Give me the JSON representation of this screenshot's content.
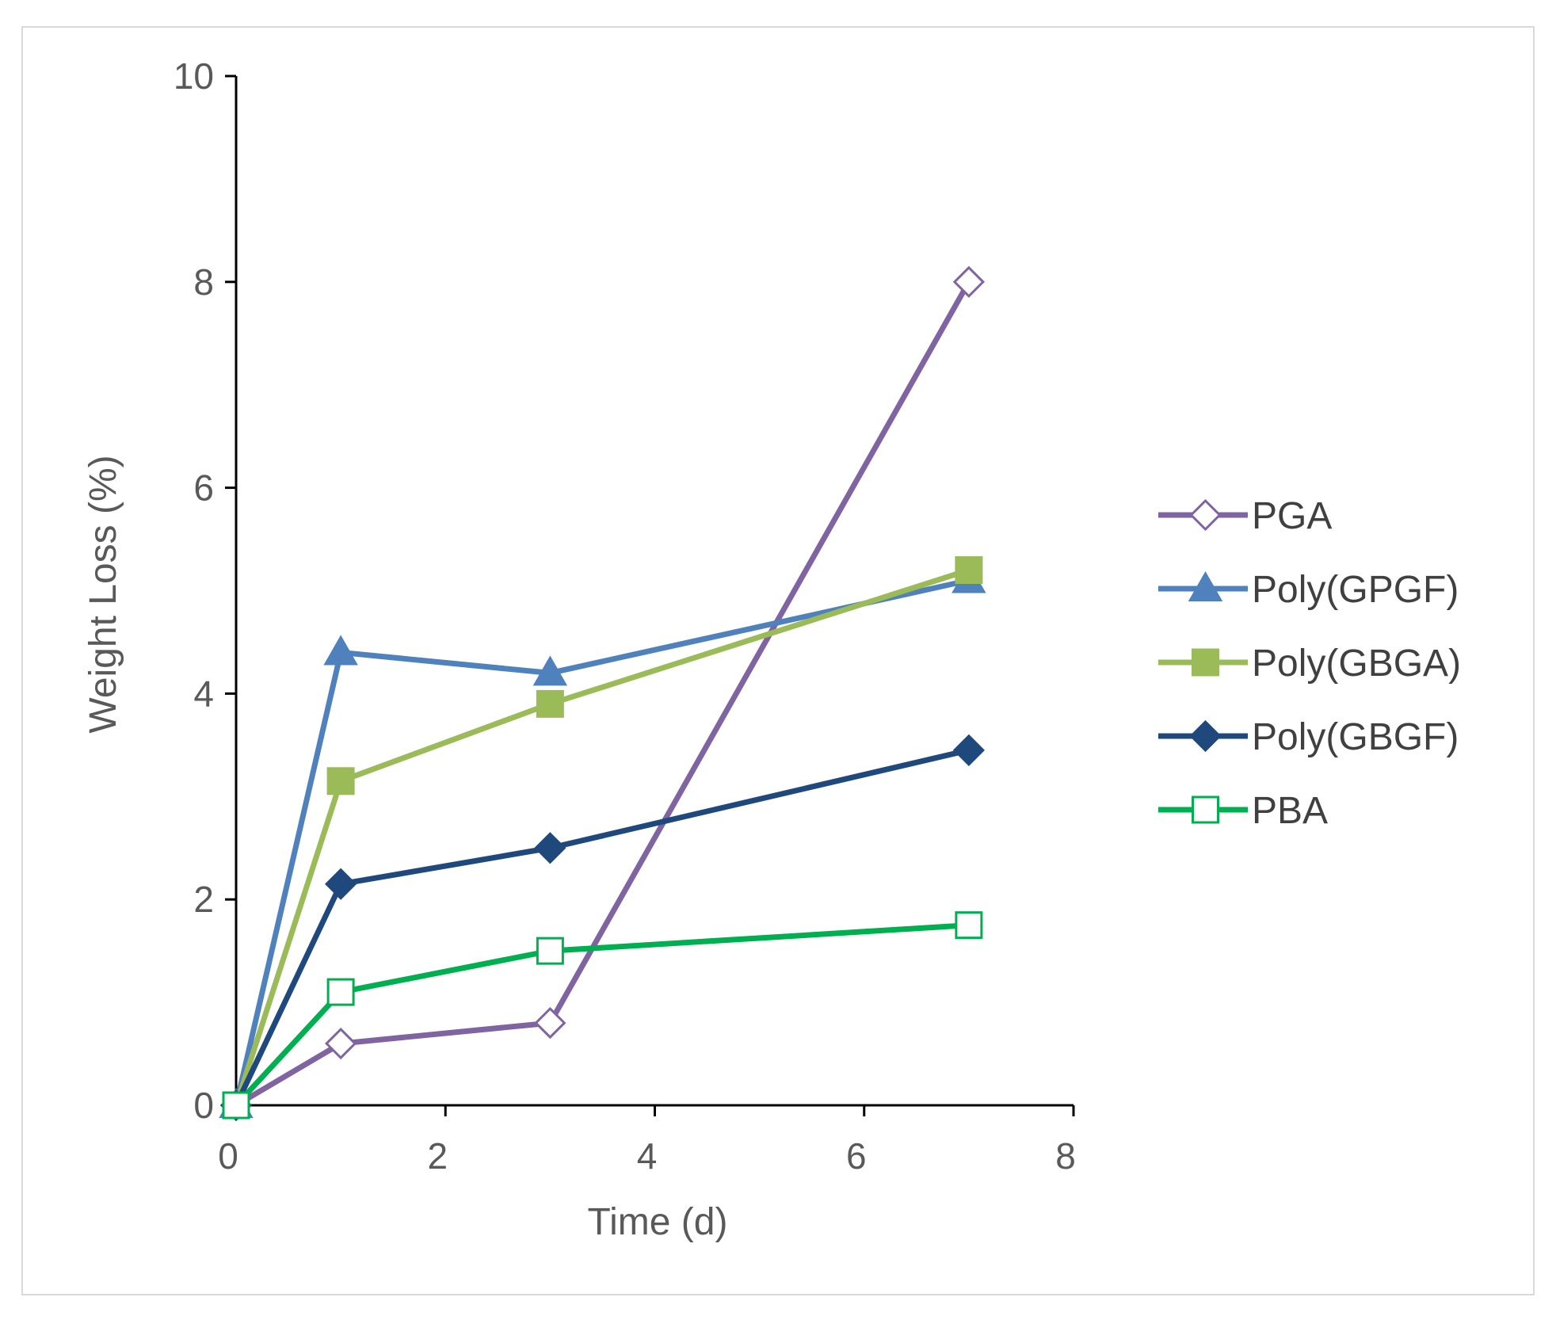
{
  "chart_data": {
    "type": "line",
    "xlabel": "Time (d)",
    "ylabel": "Weight Loss (%)",
    "xlim": [
      0,
      8
    ],
    "ylim": [
      0,
      10
    ],
    "xticks": [
      "0",
      "2",
      "4",
      "6",
      "8"
    ],
    "yticks": [
      "0",
      "2",
      "4",
      "6",
      "8",
      "10"
    ],
    "grid": false,
    "legend_position": "right",
    "x": [
      0,
      1,
      3,
      7
    ],
    "series": [
      {
        "name": "PGA",
        "values": [
          0,
          0.6,
          0.8,
          8.0
        ],
        "color": "#8064a2",
        "marker": "diamond-open"
      },
      {
        "name": "Poly(GPGF)",
        "values": [
          0,
          4.4,
          4.2,
          5.1
        ],
        "color": "#4f81bd",
        "marker": "triangle"
      },
      {
        "name": "Poly(GBGA)",
        "values": [
          0,
          3.15,
          3.9,
          5.2
        ],
        "color": "#9bbb59",
        "marker": "square"
      },
      {
        "name": "Poly(GBGF)",
        "values": [
          0,
          2.15,
          2.5,
          3.45
        ],
        "color": "#1f497d",
        "marker": "diamond"
      },
      {
        "name": "PBA",
        "values": [
          0,
          1.1,
          1.5,
          1.75
        ],
        "color": "#00b050",
        "marker": "square-open"
      }
    ]
  }
}
